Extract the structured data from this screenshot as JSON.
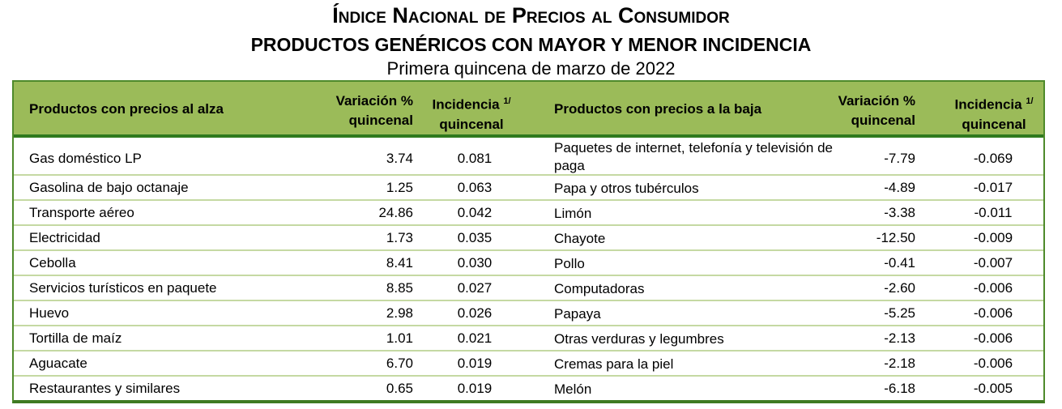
{
  "title": "Índice Nacional de Precios al Consumidor",
  "subtitle": "PRODUCTOS GENÉRICOS CON MAYOR Y MENOR INCIDENCIA",
  "period": "Primera quincena de marzo de 2022",
  "headers": {
    "up_products": "Productos con precios al alza",
    "variation_1": "Variación %",
    "variation_2": "quincenal",
    "incidence_1": "Incidencia",
    "incidence_note": "1/",
    "incidence_2": "quincenal",
    "down_products": "Productos con precios a la baja"
  },
  "colors": {
    "header_bg": "#9bbb59",
    "border": "#4e8a2b",
    "row_line": "#c5d9a3"
  },
  "rows": [
    {
      "up": "Gas doméstico LP",
      "up_var": "3.74",
      "up_inc": "0.081",
      "down": "Paquetes de internet, telefonía y televisión de paga",
      "down_var": "-7.79",
      "down_inc": "-0.069"
    },
    {
      "up": "Gasolina de bajo octanaje",
      "up_var": "1.25",
      "up_inc": "0.063",
      "down": "Papa y otros tubérculos",
      "down_var": "-4.89",
      "down_inc": "-0.017"
    },
    {
      "up": "Transporte aéreo",
      "up_var": "24.86",
      "up_inc": "0.042",
      "down": "Limón",
      "down_var": "-3.38",
      "down_inc": "-0.011"
    },
    {
      "up": "Electricidad",
      "up_var": "1.73",
      "up_inc": "0.035",
      "down": "Chayote",
      "down_var": "-12.50",
      "down_inc": "-0.009"
    },
    {
      "up": "Cebolla",
      "up_var": "8.41",
      "up_inc": "0.030",
      "down": "Pollo",
      "down_var": "-0.41",
      "down_inc": "-0.007"
    },
    {
      "up": "Servicios turísticos en paquete",
      "up_var": "8.85",
      "up_inc": "0.027",
      "down": "Computadoras",
      "down_var": "-2.60",
      "down_inc": "-0.006"
    },
    {
      "up": "Huevo",
      "up_var": "2.98",
      "up_inc": "0.026",
      "down": "Papaya",
      "down_var": "-5.25",
      "down_inc": "-0.006"
    },
    {
      "up": "Tortilla de maíz",
      "up_var": "1.01",
      "up_inc": "0.021",
      "down": "Otras verduras y legumbres",
      "down_var": "-2.13",
      "down_inc": "-0.006"
    },
    {
      "up": "Aguacate",
      "up_var": "6.70",
      "up_inc": "0.019",
      "down": "Cremas para la piel",
      "down_var": "-2.18",
      "down_inc": "-0.006"
    },
    {
      "up": "Restaurantes y similares",
      "up_var": "0.65",
      "up_inc": "0.019",
      "down": "Melón",
      "down_var": "-6.18",
      "down_inc": "-0.005"
    }
  ]
}
